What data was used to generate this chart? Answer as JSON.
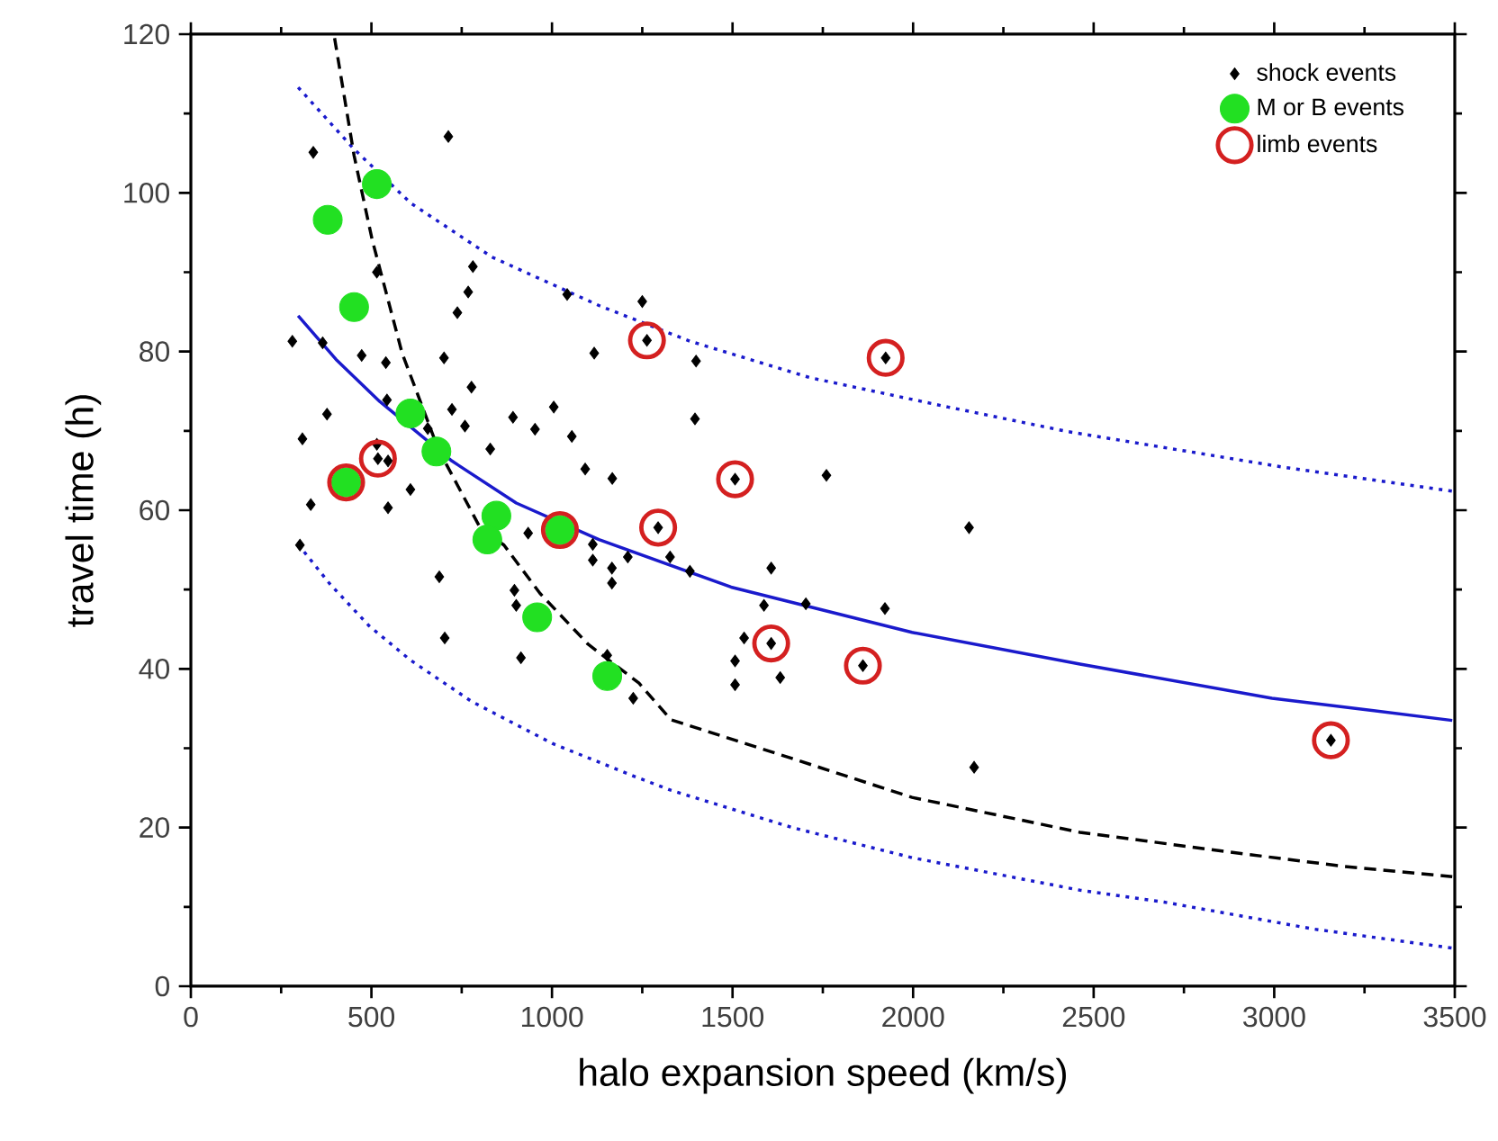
{
  "chart_data": {
    "type": "scatter",
    "xlabel": "halo expansion speed (km/s)",
    "ylabel": "travel time (h)",
    "xlim": [
      0,
      3500
    ],
    "ylim": [
      0,
      120
    ],
    "xticks": [
      0,
      500,
      1000,
      1500,
      2000,
      2500,
      3000,
      3500
    ],
    "yticks": [
      0,
      20,
      40,
      60,
      80,
      100,
      120
    ],
    "legend": "top right",
    "series": [
      {
        "type": "line",
        "color": "#1a1acc",
        "line_style": "solid",
        "marker": "none",
        "x": [
          297,
          402,
          523,
          723,
          901,
          1130,
          1496,
          1997,
          2462,
          2994,
          3493
        ],
        "values": [
          84.5,
          79.0,
          73.7,
          66.2,
          60.9,
          56.3,
          50.3,
          44.6,
          40.6,
          36.3,
          33.5
        ]
      },
      {
        "type": "line",
        "color": "#1a1acc",
        "line_style": "dotted",
        "marker": "none",
        "x": [
          297,
          452,
          609,
          834,
          1130,
          1382,
          1715,
          2097,
          2429,
          3028,
          3493
        ],
        "values": [
          113.3,
          105.5,
          98.7,
          91.9,
          85.8,
          81.3,
          76.7,
          73.0,
          69.9,
          65.4,
          62.4
        ]
      },
      {
        "type": "line",
        "color": "#1a1acc",
        "line_style": "dotted",
        "marker": "none",
        "x": [
          297,
          385,
          494,
          608,
          777,
          1001,
          1225,
          1329,
          1665,
          1997,
          2462,
          2695,
          3110,
          3493
        ],
        "values": [
          55.7,
          50.7,
          45.4,
          41.1,
          35.9,
          30.6,
          26.5,
          24.7,
          20.0,
          16.2,
          12.1,
          10.6,
          7.2,
          4.8
        ]
      },
      {
        "type": "line",
        "color": "#000000",
        "line_style": "dashed",
        "marker": "none",
        "x": [
          398,
          452,
          502,
          585,
          685,
          801,
          867,
          967,
          1100,
          1241,
          1329,
          1665,
          1997,
          2462,
          2861,
          3193,
          3493
        ],
        "values": [
          119.5,
          104.7,
          94.1,
          79.8,
          67.7,
          57.8,
          55.6,
          49.5,
          43.1,
          38.2,
          33.6,
          28.7,
          23.8,
          19.4,
          17.0,
          15.1,
          13.8
        ]
      },
      {
        "name": "shock events",
        "color": "#000000",
        "marker": "diamond",
        "x": [
          339,
          713,
          515,
          781,
          768,
          738,
          281,
          365,
          473,
          540,
          701,
          1117,
          1042,
          1250,
          777,
          543,
          377,
          723,
          656,
          759,
          892,
          1005,
          953,
          1055,
          309,
          515,
          518,
          546,
          608,
          332,
          546,
          829,
          1092,
          1167,
          934,
          1113,
          1113,
          302,
          688,
          703,
          896,
          901,
          914,
          1166,
          1166,
          1210,
          1153,
          1225,
          1263,
          1399,
          1396,
          1924,
          1507,
          1760,
          1294,
          2155,
          1327,
          1382,
          1607,
          1587,
          1703,
          1922,
          1532,
          1607,
          1507,
          1507,
          1632,
          1861,
          2169,
          3157
        ],
        "values": [
          105.1,
          107.1,
          90.0,
          90.7,
          87.5,
          84.9,
          81.3,
          81.1,
          79.5,
          78.6,
          79.2,
          79.8,
          87.2,
          86.3,
          75.5,
          73.9,
          72.1,
          72.7,
          70.3,
          70.6,
          71.7,
          73.0,
          70.2,
          69.3,
          69.0,
          68.3,
          66.5,
          66.2,
          62.6,
          60.7,
          60.3,
          67.7,
          65.2,
          64.0,
          57.1,
          55.7,
          53.7,
          55.6,
          51.6,
          43.9,
          49.9,
          48.0,
          41.4,
          52.7,
          50.8,
          54.1,
          41.7,
          36.3,
          81.4,
          78.8,
          71.5,
          79.2,
          63.9,
          64.4,
          57.8,
          57.8,
          54.1,
          52.3,
          52.7,
          48.0,
          48.2,
          47.6,
          43.9,
          43.2,
          41.0,
          38.0,
          38.9,
          40.4,
          27.6,
          31.0
        ]
      },
      {
        "name": "M or B events",
        "color": "#22e022",
        "marker": "circle",
        "x": [
          379,
          515,
          452,
          608,
          680,
          430,
          846,
          821,
          1022,
          959,
          1153
        ],
        "values": [
          96.6,
          101.1,
          85.6,
          72.2,
          67.4,
          63.5,
          59.3,
          56.3,
          57.5,
          46.5,
          39.1
        ]
      },
      {
        "name": "limb events",
        "color": "#d42020",
        "marker": "circle",
        "x": [
          430,
          518,
          1022,
          1263,
          1294,
          1507,
          1607,
          1861,
          1924,
          3157
        ],
        "values": [
          63.5,
          66.5,
          57.5,
          81.4,
          57.8,
          63.9,
          43.2,
          40.4,
          79.2,
          31.0
        ]
      }
    ]
  }
}
